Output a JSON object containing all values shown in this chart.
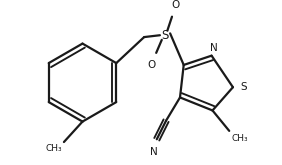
{
  "background_color": "#ffffff",
  "bond_color": "#1a1a1a",
  "line_width": 1.6,
  "figsize": [
    2.82,
    1.65
  ],
  "dpi": 100,
  "xlim": [
    0,
    282
  ],
  "ylim": [
    0,
    165
  ]
}
